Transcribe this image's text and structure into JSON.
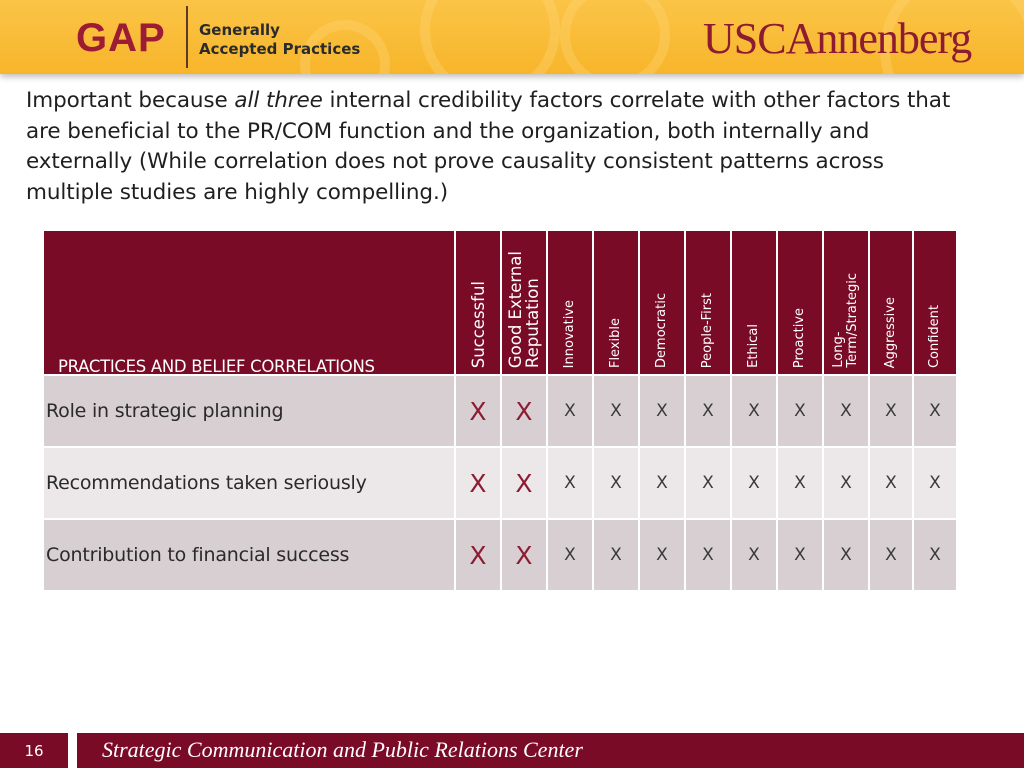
{
  "header": {
    "gap_logo": "GAP",
    "gap_subtitle_line1": "Generally",
    "gap_subtitle_line2": "Accepted Practices",
    "usc_logo": "USCAnnenberg"
  },
  "intro": {
    "before_italic": "Important because ",
    "italic": "all three",
    "after_italic": " internal credibility factors correlate with other factors that are beneficial to the PR/COM function and the organization, both internally and externally (While correlation does not prove causality consistent patterns across multiple studies are highly compelling.)"
  },
  "table": {
    "corner_label": "PRACTICES AND BELIEF CORRELATIONS",
    "columns": [
      {
        "label": "Successful",
        "emphasis": true
      },
      {
        "label": "Good External Reputation",
        "line1": "Good External",
        "line2": "Reputation",
        "emphasis": true
      },
      {
        "label": "Innovative",
        "emphasis": false
      },
      {
        "label": "Flexible",
        "emphasis": false
      },
      {
        "label": "Democratic",
        "emphasis": false
      },
      {
        "label": "People-First",
        "emphasis": false
      },
      {
        "label": "Ethical",
        "emphasis": false
      },
      {
        "label": "Proactive",
        "emphasis": false
      },
      {
        "label": "Long-Term/Strategic",
        "line1": "Long-",
        "line2": "Term/Strategic",
        "emphasis": false
      },
      {
        "label": "Aggressive",
        "emphasis": false
      },
      {
        "label": "Confident",
        "emphasis": false
      }
    ],
    "rows": [
      {
        "label": "Role in strategic planning",
        "marks": [
          "X",
          "X",
          "X",
          "X",
          "X",
          "X",
          "X",
          "X",
          "X",
          "X",
          "X"
        ]
      },
      {
        "label": "Recommendations taken seriously",
        "marks": [
          "X",
          "X",
          "X",
          "X",
          "X",
          "X",
          "X",
          "X",
          "X",
          "X",
          "X"
        ]
      },
      {
        "label": "Contribution to financial success",
        "marks": [
          "X",
          "X",
          "X",
          "X",
          "X",
          "X",
          "X",
          "X",
          "X",
          "X",
          "X"
        ]
      }
    ]
  },
  "footer": {
    "slide_number": "16",
    "text": "Strategic Communication and Public Relations Center"
  },
  "colors": {
    "brand_cardinal": "#7a0b26",
    "brand_gold": "#f7b52a"
  }
}
